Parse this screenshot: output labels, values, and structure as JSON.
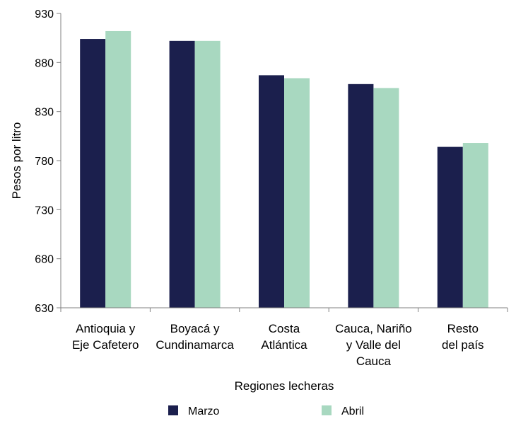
{
  "chart_data": {
    "type": "bar",
    "categories": [
      [
        "Antioquia y",
        "Eje Cafetero"
      ],
      [
        "Boyacá y",
        "Cundinamarca"
      ],
      [
        "Costa",
        "Atlántica"
      ],
      [
        "Cauca, Nariño",
        "y Valle del",
        "Cauca"
      ],
      [
        "Resto",
        "del país"
      ]
    ],
    "series": [
      {
        "name": "Marzo",
        "color": "#1b1f4d",
        "values": [
          904,
          902,
          867,
          858,
          794
        ]
      },
      {
        "name": "Abril",
        "color": "#a8d8c0",
        "values": [
          912,
          902,
          864,
          854,
          798
        ]
      }
    ],
    "xlabel": "Regiones lecheras",
    "ylabel": "Pesos por litro",
    "ylim": [
      630,
      930
    ],
    "yticks": [
      630,
      680,
      730,
      780,
      830,
      880,
      930
    ],
    "grid": false,
    "legend_position": "bottom"
  }
}
